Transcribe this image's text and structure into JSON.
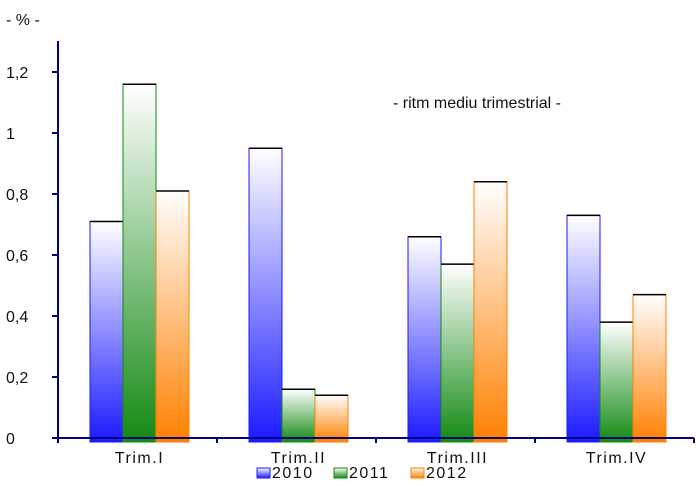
{
  "chart_data": {
    "type": "bar",
    "title": "",
    "ylabel": "- % -",
    "xlabel": "",
    "annotation": "- ritm  mediu trimestrial -",
    "categories": [
      "Trim.I",
      "Trim.II",
      "Trim.III",
      "Trim.IV"
    ],
    "series": [
      {
        "name": "2010",
        "values": [
          0.71,
          0.95,
          0.66,
          0.73
        ],
        "color": "#1a1aff"
      },
      {
        "name": "2011",
        "values": [
          1.16,
          0.16,
          0.57,
          0.38
        ],
        "color": "#138a13"
      },
      {
        "name": "2012",
        "values": [
          0.81,
          0.14,
          0.84,
          0.47
        ],
        "color": "#ff8000"
      }
    ],
    "ylim": [
      0,
      1.2
    ],
    "yticks": [
      "0",
      "0,2",
      "0,4",
      "0,6",
      "0,8",
      "1",
      "1,2"
    ],
    "grid": false,
    "legend_position": "bottom"
  }
}
